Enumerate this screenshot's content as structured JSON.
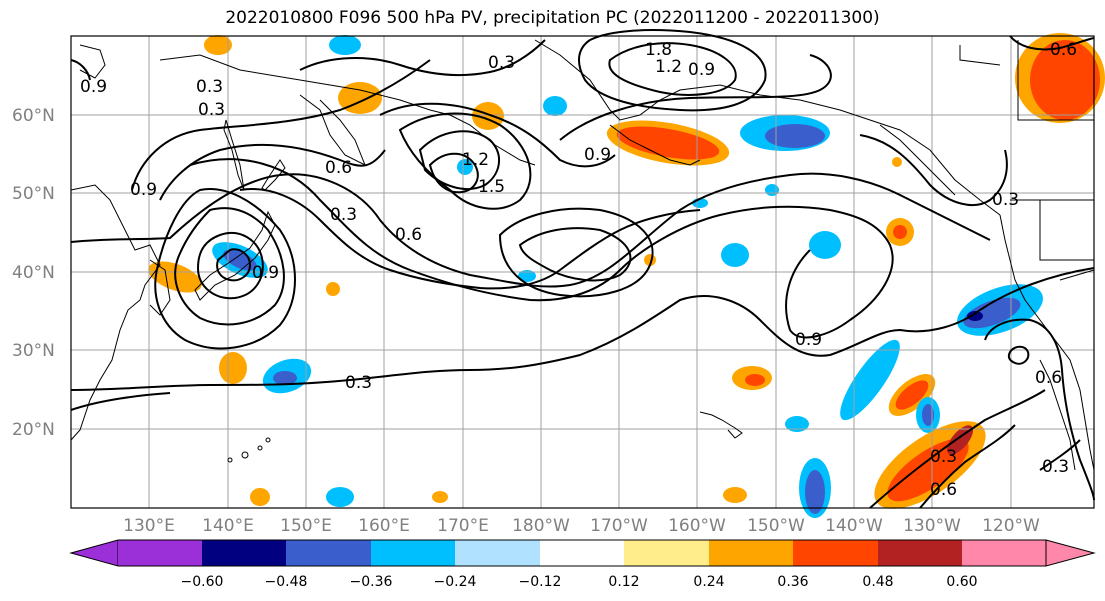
{
  "title": "2022010800 F096 500 hPa PV, precipitation PC (2022011200 - 2022011300)",
  "lat_labels": [
    "60°N",
    "50°N",
    "40°N",
    "30°N",
    "20°N"
  ],
  "lon_labels": [
    "130°E",
    "140°E",
    "150°E",
    "160°E",
    "170°E",
    "180°W",
    "170°W",
    "160°W",
    "150°W",
    "140°W",
    "130°W",
    "120°W"
  ],
  "contour_labels": [
    "0.3",
    "0.9",
    "1.8",
    "1.2",
    "0.9",
    "0.3",
    "0.6",
    "1.2",
    "1.5",
    "0.9",
    "0.3",
    "0.6",
    "0.9",
    "0.9",
    "0.3",
    "0.6",
    "0.3",
    "0.6",
    "0.3",
    "0.9",
    "0.3",
    "0.6",
    "0.3"
  ],
  "colorbar": {
    "ticks": [
      "−0.60",
      "−0.48",
      "−0.36",
      "−0.24",
      "−0.12",
      "0.12",
      "0.24",
      "0.36",
      "0.48",
      "0.60"
    ],
    "colors": [
      "#9b30d9",
      "#000080",
      "#3a5fcd",
      "#00bfff",
      "#b0e2ff",
      "#ffffff",
      "#ffec8b",
      "#ffa500",
      "#ff4500",
      "#b22222",
      "#ff88aa"
    ]
  }
}
